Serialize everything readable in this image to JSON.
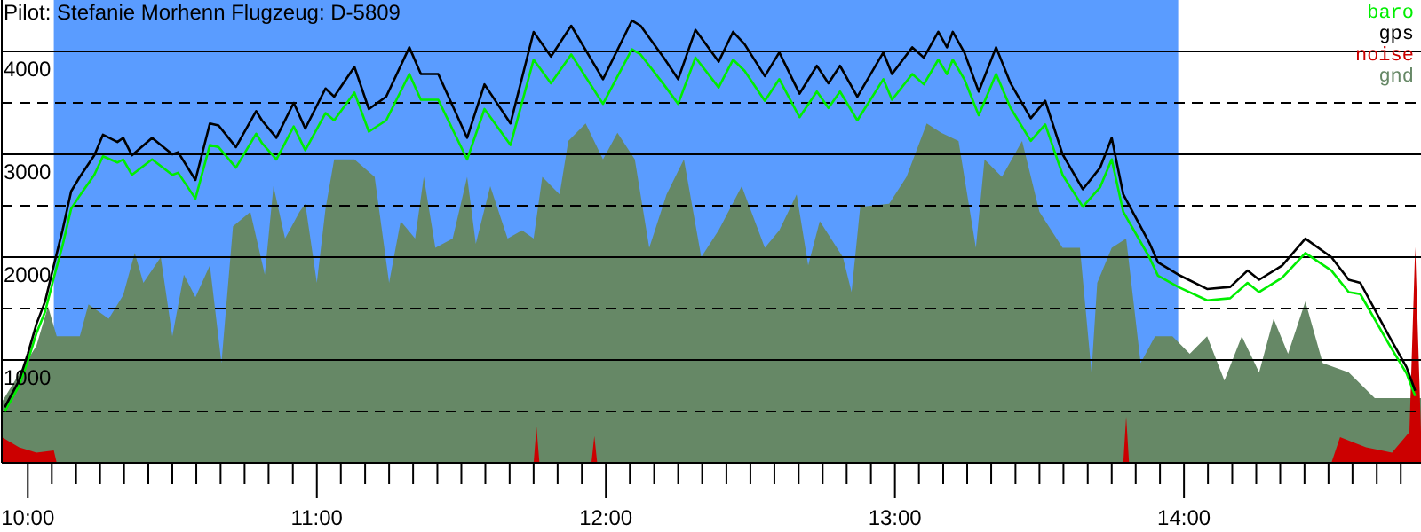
{
  "chart_data": {
    "type": "line",
    "title": "Pilot: Stefanie Morhenn Flugzeug: D-5809",
    "x": [
      9.92,
      9.97,
      10.0,
      10.03,
      10.06,
      10.09,
      10.12,
      10.15,
      10.18,
      10.23,
      10.26,
      10.31,
      10.33,
      10.36,
      10.43,
      10.5,
      10.52,
      10.58,
      10.63,
      10.66,
      10.72,
      10.79,
      10.81,
      10.86,
      10.92,
      10.96,
      11.03,
      11.06,
      11.13,
      11.18,
      11.24,
      11.32,
      11.36,
      11.42,
      11.52,
      11.58,
      11.67,
      11.75,
      11.81,
      11.88,
      11.99,
      12.09,
      12.12,
      12.2,
      12.25,
      12.31,
      12.39,
      12.44,
      12.48,
      12.55,
      12.6,
      12.67,
      12.73,
      12.77,
      12.81,
      12.87,
      12.96,
      12.99,
      13.06,
      13.1,
      13.15,
      13.18,
      13.2,
      13.24,
      13.29,
      13.35,
      13.4,
      13.47,
      13.52,
      13.58,
      13.65,
      13.71,
      13.75,
      13.79,
      13.88,
      13.91,
      13.98,
      14.08,
      14.16,
      14.22,
      14.26,
      14.34,
      14.42,
      14.51,
      14.57,
      14.61,
      14.71,
      14.77,
      14.8
    ],
    "series": [
      {
        "name": "baro",
        "color": "#00ee00",
        "values": [
          500,
          750,
          990,
          1260,
          1470,
          1800,
          2110,
          2470,
          2600,
          2800,
          2980,
          2920,
          2950,
          2800,
          2950,
          2800,
          2820,
          2570,
          3090,
          3070,
          2870,
          3200,
          3110,
          2950,
          3270,
          3040,
          3400,
          3330,
          3600,
          3220,
          3330,
          3780,
          3530,
          3530,
          2950,
          3440,
          3090,
          3920,
          3690,
          3970,
          3490,
          4020,
          3970,
          3680,
          3490,
          3940,
          3650,
          3920,
          3810,
          3520,
          3730,
          3360,
          3610,
          3450,
          3610,
          3330,
          3730,
          3530,
          3780,
          3680,
          3920,
          3780,
          3920,
          3730,
          3380,
          3780,
          3450,
          3130,
          3290,
          2800,
          2490,
          2680,
          2950,
          2440,
          2000,
          1820,
          1710,
          1580,
          1600,
          1750,
          1660,
          1800,
          2040,
          1870,
          1660,
          1640,
          1150,
          870,
          650
        ]
      },
      {
        "name": "gps",
        "color": "#000000",
        "values": [
          540,
          800,
          1060,
          1350,
          1570,
          1920,
          2260,
          2640,
          2780,
          2990,
          3190,
          3120,
          3160,
          2990,
          3160,
          3000,
          3020,
          2750,
          3300,
          3280,
          3070,
          3420,
          3330,
          3160,
          3500,
          3250,
          3640,
          3560,
          3850,
          3440,
          3560,
          4040,
          3780,
          3780,
          3160,
          3680,
          3300,
          4190,
          3950,
          4250,
          3730,
          4300,
          4250,
          3940,
          3730,
          4210,
          3900,
          4190,
          4070,
          3760,
          3990,
          3590,
          3860,
          3690,
          3860,
          3560,
          3990,
          3780,
          4040,
          3940,
          4190,
          4040,
          4190,
          3990,
          3610,
          4040,
          3690,
          3350,
          3520,
          3000,
          2660,
          2870,
          3160,
          2610,
          2140,
          1950,
          1830,
          1690,
          1710,
          1870,
          1780,
          1920,
          2180,
          2000,
          1780,
          1750,
          1230,
          930,
          700
        ]
      },
      {
        "name": "noise",
        "type": "area",
        "color": "#cc0000",
        "x": [
          9.91,
          9.97,
          10.03,
          10.09,
          10.1,
          11.75,
          11.76,
          11.77,
          11.95,
          11.96,
          11.97,
          13.79,
          13.8,
          13.81,
          14.51,
          14.54,
          14.63,
          14.72,
          14.78,
          14.8,
          14.82
        ],
        "values": [
          250,
          150,
          100,
          120,
          0,
          0,
          350,
          0,
          0,
          260,
          0,
          0,
          450,
          0,
          0,
          250,
          150,
          100,
          300,
          2100,
          300
        ]
      },
      {
        "name": "gnd",
        "type": "area",
        "color": "#668866",
        "x": [
          9.91,
          10.03,
          10.07,
          10.1,
          10.18,
          10.21,
          10.28,
          10.33,
          10.37,
          10.4,
          10.46,
          10.5,
          10.54,
          10.58,
          10.63,
          10.67,
          10.71,
          10.77,
          10.82,
          10.85,
          10.89,
          10.94,
          10.96,
          11.0,
          11.03,
          11.06,
          11.13,
          11.2,
          11.25,
          11.29,
          11.34,
          11.37,
          11.41,
          11.47,
          11.52,
          11.55,
          11.6,
          11.66,
          11.71,
          11.75,
          11.78,
          11.84,
          11.87,
          11.93,
          11.99,
          12.04,
          12.1,
          12.15,
          12.21,
          12.27,
          12.33,
          12.39,
          12.47,
          12.55,
          12.6,
          12.66,
          12.7,
          12.74,
          12.82,
          12.85,
          12.88,
          12.98,
          13.04,
          13.11,
          13.16,
          13.22,
          13.28,
          13.31,
          13.37,
          13.44,
          13.5,
          13.58,
          13.64,
          13.68,
          13.7,
          13.75,
          13.8,
          13.85,
          13.9,
          13.96,
          14.02,
          14.08,
          14.14,
          14.2,
          14.26,
          14.31,
          14.36,
          14.42,
          14.48,
          14.57,
          14.66,
          14.75,
          14.82
        ],
        "values": [
          590,
          1140,
          1520,
          1230,
          1230,
          1540,
          1400,
          1630,
          2040,
          1750,
          2000,
          1230,
          1830,
          1610,
          1920,
          970,
          2300,
          2440,
          1830,
          2690,
          2180,
          2440,
          2520,
          1750,
          2470,
          2950,
          2950,
          2780,
          1750,
          2350,
          2180,
          2780,
          2090,
          2180,
          2780,
          2130,
          2690,
          2180,
          2260,
          2180,
          2780,
          2610,
          3130,
          3300,
          2950,
          3210,
          2950,
          2090,
          2610,
          2950,
          2000,
          2260,
          2690,
          2090,
          2260,
          2610,
          1920,
          2350,
          2000,
          1660,
          2490,
          2520,
          2780,
          3300,
          3210,
          3130,
          2090,
          2950,
          2780,
          3130,
          2440,
          2090,
          2090,
          880,
          1750,
          2090,
          2180,
          970,
          1230,
          1230,
          1060,
          1230,
          800,
          1230,
          880,
          1400,
          1060,
          1570,
          970,
          880,
          630,
          630,
          630
        ]
      }
    ],
    "xlim": [
      9.91,
      14.82
    ],
    "xticks": [
      {
        "value": 10,
        "label": "10:00"
      },
      {
        "value": 10.083,
        "label": null
      },
      {
        "value": 10.167,
        "label": null
      },
      {
        "value": 10.25,
        "label": null
      },
      {
        "value": 10.333,
        "label": null
      },
      {
        "value": 10.417,
        "label": null
      },
      {
        "value": 10.5,
        "label": null
      },
      {
        "value": 10.583,
        "label": null
      },
      {
        "value": 10.667,
        "label": null
      },
      {
        "value": 10.75,
        "label": null
      },
      {
        "value": 10.833,
        "label": null
      },
      {
        "value": 10.917,
        "label": null
      },
      {
        "value": 11,
        "label": "11:00"
      },
      {
        "value": 11.083,
        "label": null
      },
      {
        "value": 11.167,
        "label": null
      },
      {
        "value": 11.25,
        "label": null
      },
      {
        "value": 11.333,
        "label": null
      },
      {
        "value": 11.417,
        "label": null
      },
      {
        "value": 11.5,
        "label": null
      },
      {
        "value": 11.583,
        "label": null
      },
      {
        "value": 11.667,
        "label": null
      },
      {
        "value": 11.75,
        "label": null
      },
      {
        "value": 11.833,
        "label": null
      },
      {
        "value": 11.917,
        "label": null
      },
      {
        "value": 12,
        "label": "12:00"
      },
      {
        "value": 12.083,
        "label": null
      },
      {
        "value": 12.167,
        "label": null
      },
      {
        "value": 12.25,
        "label": null
      },
      {
        "value": 12.333,
        "label": null
      },
      {
        "value": 12.417,
        "label": null
      },
      {
        "value": 12.5,
        "label": null
      },
      {
        "value": 12.583,
        "label": null
      },
      {
        "value": 12.667,
        "label": null
      },
      {
        "value": 12.75,
        "label": null
      },
      {
        "value": 12.833,
        "label": null
      },
      {
        "value": 12.917,
        "label": null
      },
      {
        "value": 13,
        "label": "13:00"
      },
      {
        "value": 13.083,
        "label": null
      },
      {
        "value": 13.167,
        "label": null
      },
      {
        "value": 13.25,
        "label": null
      },
      {
        "value": 13.333,
        "label": null
      },
      {
        "value": 13.417,
        "label": null
      },
      {
        "value": 13.5,
        "label": null
      },
      {
        "value": 13.583,
        "label": null
      },
      {
        "value": 13.667,
        "label": null
      },
      {
        "value": 13.75,
        "label": null
      },
      {
        "value": 13.833,
        "label": null
      },
      {
        "value": 13.917,
        "label": null
      },
      {
        "value": 14,
        "label": "14:00"
      },
      {
        "value": 14.083,
        "label": null
      },
      {
        "value": 14.167,
        "label": null
      },
      {
        "value": 14.25,
        "label": null
      },
      {
        "value": 14.333,
        "label": null
      },
      {
        "value": 14.417,
        "label": null
      },
      {
        "value": 14.5,
        "label": null
      },
      {
        "value": 14.583,
        "label": null
      },
      {
        "value": 14.667,
        "label": null
      },
      {
        "value": 14.75,
        "label": null
      }
    ],
    "ylim": [
      0,
      4500
    ],
    "yticks": [
      {
        "value": 500,
        "label": null
      },
      1000,
      {
        "value": 1500,
        "label": null
      },
      2000,
      {
        "value": 2500,
        "label": null
      },
      3000,
      {
        "value": 3500,
        "label": null
      },
      4000
    ],
    "bands": [
      {
        "axis": "x",
        "from": 10.09,
        "to": 13.98,
        "color": "#5a9cff"
      }
    ],
    "grid": "y",
    "legend": "top right"
  }
}
